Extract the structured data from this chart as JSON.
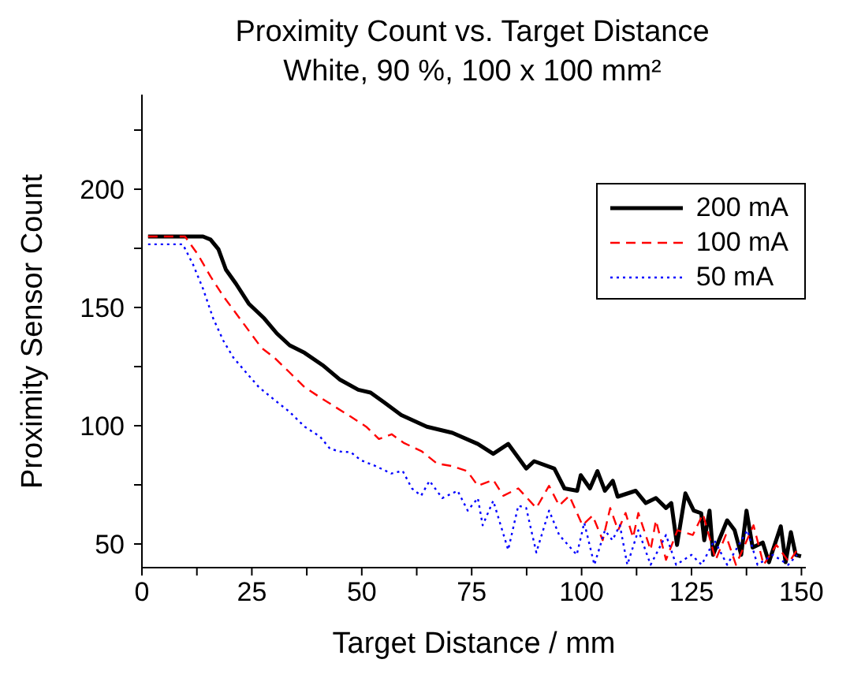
{
  "chart_data": {
    "type": "line",
    "title": "Proximity Count vs. Target Distance",
    "subtitle": "White, 90 %, 100 x 100 mm²",
    "xlabel": "Target Distance / mm",
    "ylabel": "Proximity Sensor Count",
    "xlim": [
      0,
      151
    ],
    "ylim": [
      40,
      240
    ],
    "xticks": [
      0,
      {
        "value": 12.5,
        "label": null
      },
      25,
      {
        "value": 37.5,
        "label": null
      },
      50,
      {
        "value": 62.5,
        "label": null
      },
      75,
      {
        "value": 87.5,
        "label": null
      },
      100,
      {
        "value": 112.5,
        "label": null
      },
      125,
      {
        "value": 137.5,
        "label": null
      },
      150
    ],
    "yticks": [
      50,
      {
        "value": 75,
        "label": null
      },
      100,
      {
        "value": 125,
        "label": null
      },
      150,
      {
        "value": 175,
        "label": null
      },
      200,
      {
        "value": 225,
        "label": null
      }
    ],
    "grid": false,
    "legend": "top right",
    "marker": "none",
    "series": [
      {
        "name": "200 mA",
        "color": "#000000",
        "line_style": "solid",
        "x": [
          1.4,
          13.9,
          15.6,
          17.4,
          19.1,
          21.4,
          24.3,
          27.8,
          30.7,
          33.6,
          37.0,
          41.1,
          45.1,
          49.2,
          52,
          55,
          59,
          64.8,
          70.6,
          76.4,
          79.9,
          83.3,
          87.4,
          89.2,
          93.8,
          96.1,
          99,
          99.8,
          101.9,
          103.6,
          105.3,
          107.1,
          108.2,
          112.3,
          114.6,
          116.9,
          119.2,
          120.4,
          121.7,
          123.6,
          125.5,
          127.2,
          127.9,
          129.1,
          129.9,
          133.1,
          134.8,
          136.3,
          137.5,
          138.9,
          141.2,
          142.6,
          145.3,
          146.4,
          147.6,
          148.7,
          149.9
        ],
        "values": [
          180,
          180,
          178.7,
          174.6,
          166,
          160,
          151.6,
          145.4,
          139,
          134,
          130.8,
          125.6,
          119.4,
          115.2,
          114,
          110,
          104.5,
          99.6,
          97,
          92.3,
          88.1,
          92.3,
          81.9,
          85,
          81.9,
          73.5,
          72.5,
          79.1,
          73.5,
          80.8,
          72.5,
          76.7,
          70,
          72.5,
          67.3,
          69.4,
          65.2,
          67.3,
          49.6,
          71.4,
          64.1,
          63,
          51.6,
          64.1,
          45.4,
          60,
          55.8,
          45.4,
          64.1,
          48.5,
          50.6,
          42.3,
          57.5,
          42.3,
          55,
          45.4,
          44.8
        ]
      },
      {
        "name": "100 mA",
        "color": "#ff0000",
        "line_style": "dashed",
        "x": [
          1.4,
          9.8,
          12.7,
          15.6,
          18.5,
          21.4,
          24.3,
          27.2,
          30.1,
          33.6,
          37,
          40.5,
          44,
          47.5,
          51,
          53.9,
          56.8,
          59.5,
          63.7,
          67.1,
          70.6,
          74,
          76.4,
          79.9,
          82.2,
          85.6,
          89.7,
          92.6,
          94.9,
          97.2,
          100.2,
          102.5,
          104.8,
          106.5,
          108.3,
          110,
          111.7,
          112.9,
          115.7,
          116.9,
          119.2,
          121.8,
          125.3,
          127.6,
          130.5,
          132.8,
          135.1,
          139.1,
          141.4,
          144.3,
          147.2,
          149
        ],
        "values": [
          180,
          180,
          172.5,
          163.1,
          154.8,
          147.5,
          140.2,
          132.9,
          128.8,
          122.5,
          116.3,
          112,
          107.9,
          103.8,
          99.6,
          94.4,
          96.4,
          92.8,
          89.1,
          84,
          82.9,
          80.8,
          74.6,
          77.1,
          70.4,
          73.5,
          65.2,
          74.6,
          66.2,
          70.4,
          57.9,
          62,
          51.6,
          65.2,
          55.8,
          63.1,
          52.7,
          63.1,
          47.5,
          60,
          43.3,
          55.8,
          53.8,
          62.7,
          43.3,
          53.8,
          41.2,
          57.9,
          41.2,
          49.6,
          42.3,
          47.5
        ]
      },
      {
        "name": "50 mA",
        "color": "#0000ff",
        "line_style": "dotted",
        "x": [
          1.4,
          9.3,
          11.6,
          13.9,
          16.2,
          18.5,
          20.8,
          23.7,
          26.6,
          30.1,
          33.6,
          37,
          40.5,
          42.8,
          45.1,
          47.5,
          49.8,
          53.2,
          56.7,
          59.3,
          61.4,
          63.5,
          65.4,
          68.3,
          71.8,
          74.1,
          76.4,
          77.5,
          79.9,
          83.3,
          85.6,
          87.4,
          89.7,
          92.6,
          94.9,
          98.9,
          100.6,
          102.9,
          105.3,
          107,
          108.7,
          110.4,
          112.9,
          115.7,
          119.2,
          121.5,
          125,
          127.3,
          130.2,
          133.1,
          137.7,
          140,
          143.5,
          147,
          149
        ],
        "values": [
          176.7,
          176.7,
          168.3,
          157.9,
          145.4,
          136,
          128.8,
          122.5,
          116.3,
          111,
          105.8,
          99.6,
          95.4,
          90.2,
          89.1,
          88.8,
          85.4,
          82.9,
          79.8,
          80.9,
          73.5,
          70.4,
          76.7,
          69.4,
          72.5,
          64.1,
          69.4,
          57.9,
          68.3,
          47.5,
          66.2,
          65.2,
          46.4,
          64.1,
          53.8,
          45.4,
          59,
          41.2,
          55.8,
          51.6,
          57.9,
          41.2,
          55.8,
          41.2,
          53.8,
          41.2,
          45.4,
          41.2,
          51.6,
          41.2,
          55.8,
          41.2,
          45.4,
          41.2,
          45.4
        ]
      }
    ]
  }
}
